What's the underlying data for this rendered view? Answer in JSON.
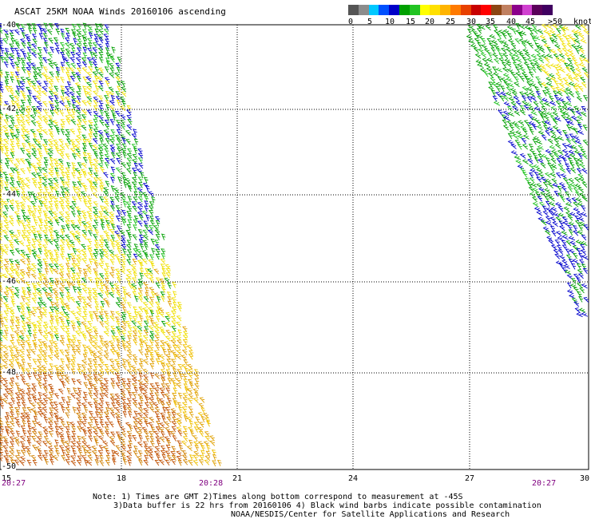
{
  "title": "ASCAT 25KM NOAA Winds 20160106 ascending",
  "legend": {
    "labels": [
      "0",
      "5",
      "10",
      "15",
      "20",
      "25",
      "30",
      "35",
      "40",
      "45",
      ">50"
    ],
    "units": "knots",
    "colors": [
      "#555555",
      "#8c8c8c",
      "#00c8ff",
      "#0050ff",
      "#0000c8",
      "#00a000",
      "#22c422",
      "#ffff00",
      "#ffe000",
      "#ffb400",
      "#ff7a00",
      "#e84000",
      "#c80000",
      "#ff0000",
      "#8b4513",
      "#c08060",
      "#8b008b",
      "#d040d0",
      "#5a005a",
      "#400060"
    ]
  },
  "map": {
    "lat_labels": [
      "-40",
      "-42",
      "-44",
      "-46",
      "-48",
      "-50"
    ],
    "lon_labels": [
      "15",
      "18",
      "21",
      "24",
      "27",
      "30"
    ],
    "times": [
      "20:27",
      "20:28",
      "20:27"
    ]
  },
  "notes": {
    "line1": "Note: 1) Times are GMT 2)Times along bottom correspond to measurement at -45S",
    "line2": "3)Data buffer is 22 hrs from 20160106 4) Black wind barbs indicate possible contamination",
    "line3": "NOAA/NESDIS/Center for Satellite Applications and Research"
  }
}
